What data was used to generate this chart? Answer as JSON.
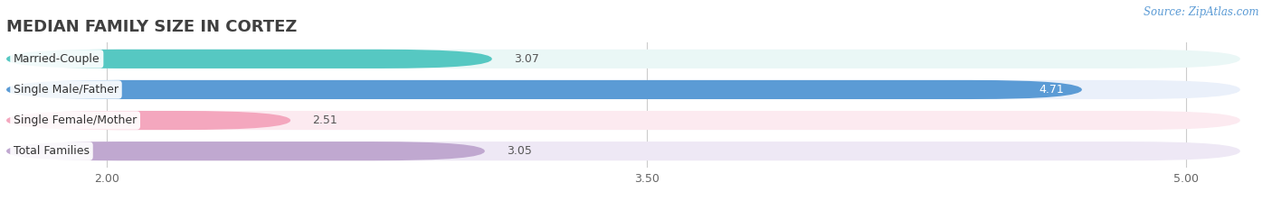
{
  "title": "MEDIAN FAMILY SIZE IN CORTEZ",
  "source": "Source: ZipAtlas.com",
  "categories": [
    "Married-Couple",
    "Single Male/Father",
    "Single Female/Mother",
    "Total Families"
  ],
  "values": [
    3.07,
    4.71,
    2.51,
    3.05
  ],
  "bar_colors": [
    "#56C8C2",
    "#5B9BD5",
    "#F4A7BE",
    "#C0A8D0"
  ],
  "bar_bg_colors": [
    "#EAF7F6",
    "#EAF0FA",
    "#FCEAF0",
    "#EEE8F5"
  ],
  "xmin": 1.72,
  "xmax": 5.15,
  "xticks": [
    2.0,
    3.5,
    5.0
  ],
  "title_fontsize": 13,
  "label_fontsize": 9,
  "value_fontsize": 9,
  "tick_fontsize": 9,
  "background_color": "#ffffff",
  "bar_height": 0.62,
  "bar_gap": 0.38
}
